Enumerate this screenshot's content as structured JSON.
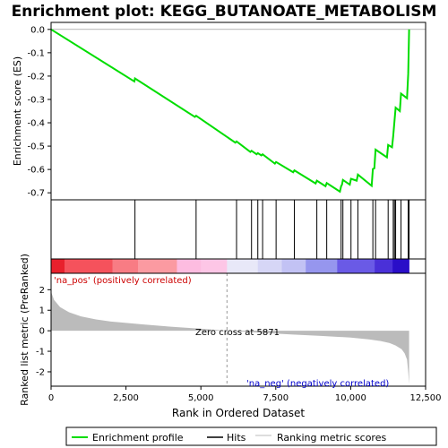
{
  "chart_data": {
    "type": "line",
    "title": "Enrichment plot: KEGG_BUTANOATE_METABOLISM",
    "es_panel": {
      "ylabel": "Enrichment score (ES)",
      "ylim": [
        -0.73,
        0.03
      ],
      "yticks": [
        0.0,
        -0.1,
        -0.2,
        -0.3,
        -0.4,
        -0.5,
        -0.6,
        -0.7
      ],
      "ytick_labels": [
        "0.0",
        "-0.1",
        "-0.2",
        "-0.3",
        "-0.4",
        "-0.5",
        "-0.6",
        "-0.7"
      ],
      "series": [
        {
          "name": "Enrichment profile",
          "color": "#00dd00",
          "x": [
            0,
            2780,
            2800,
            4800,
            4840,
            6150,
            6190,
            6650,
            6690,
            6860,
            6900,
            7020,
            7060,
            7470,
            7510,
            8080,
            8120,
            8830,
            8870,
            9160,
            9200,
            9640,
            9680,
            9710,
            9740,
            9970,
            10010,
            10200,
            10240,
            10700,
            10740,
            10790,
            10830,
            11210,
            11250,
            11380,
            11420,
            11460,
            11500,
            11640,
            11680,
            11880,
            11920,
            11950
          ],
          "y": [
            0.0,
            -0.223,
            -0.21,
            -0.375,
            -0.37,
            -0.485,
            -0.48,
            -0.525,
            -0.52,
            -0.535,
            -0.53,
            -0.54,
            -0.535,
            -0.575,
            -0.568,
            -0.612,
            -0.604,
            -0.66,
            -0.648,
            -0.672,
            -0.658,
            -0.695,
            -0.672,
            -0.665,
            -0.645,
            -0.665,
            -0.64,
            -0.648,
            -0.622,
            -0.67,
            -0.598,
            -0.595,
            -0.515,
            -0.548,
            -0.495,
            -0.505,
            -0.455,
            -0.395,
            -0.335,
            -0.35,
            -0.275,
            -0.295,
            -0.19,
            0.0
          ]
        }
      ]
    },
    "hits": {
      "label": "Hits",
      "positions": [
        2800,
        4840,
        6190,
        6690,
        6900,
        7060,
        7510,
        8120,
        8870,
        9200,
        9680,
        9740,
        10010,
        10240,
        10740,
        10830,
        11250,
        11420,
        11460,
        11500,
        11680,
        11920,
        11950
      ]
    },
    "rank_metric": {
      "ylabel": "Ranked list metric (PreRanked)",
      "legend_label": "Ranking metric scores",
      "ylim": [
        -2.7,
        2.8
      ],
      "yticks": [
        2,
        1,
        0,
        -1,
        -2
      ],
      "ytick_labels": [
        "2",
        "1",
        "0",
        "-1",
        "-2"
      ],
      "x": [
        0,
        100,
        300,
        600,
        1000,
        1500,
        2000,
        3000,
        4000,
        5000,
        5871,
        7000,
        8000,
        9000,
        10000,
        10600,
        11000,
        11300,
        11500,
        11700,
        11800,
        11880,
        11920,
        11950
      ],
      "y": [
        1.9,
        1.5,
        1.15,
        0.9,
        0.7,
        0.55,
        0.45,
        0.32,
        0.2,
        0.1,
        0.0,
        -0.1,
        -0.18,
        -0.25,
        -0.33,
        -0.42,
        -0.5,
        -0.6,
        -0.72,
        -0.9,
        -1.1,
        -1.4,
        -2.0,
        -2.6
      ],
      "zero_cross_label": "Zero cross at 5871",
      "zero_cross_x": 5871,
      "pos_label": "'na_pos' (positively correlated)",
      "neg_label": "'na_neg' (negatively correlated)"
    },
    "x_axis": {
      "xlabel": "Rank in Ordered Dataset",
      "xlim": [
        0,
        12500
      ],
      "xticks": [
        0,
        2500,
        5000,
        7500,
        10000,
        12500
      ],
      "xtick_labels": [
        "0",
        "2,500",
        "5,000",
        "7,500",
        "10,000",
        "12,500"
      ],
      "n_genes": 11950
    },
    "heat_bar": {
      "segments": [
        {
          "end": 450,
          "color": "#e8202c"
        },
        {
          "end": 2050,
          "color": "#f5525c"
        },
        {
          "end": 2900,
          "color": "#f87c84"
        },
        {
          "end": 4200,
          "color": "#fb9aa1"
        },
        {
          "end": 5000,
          "color": "#fdbce0"
        },
        {
          "end": 5871,
          "color": "#fdc6e6"
        },
        {
          "end": 6900,
          "color": "#e8e8f8"
        },
        {
          "end": 7700,
          "color": "#d6d6f6"
        },
        {
          "end": 8500,
          "color": "#c2c2f4"
        },
        {
          "end": 9550,
          "color": "#9696ee"
        },
        {
          "end": 10800,
          "color": "#6a5ae6"
        },
        {
          "end": 11400,
          "color": "#4a30d8"
        },
        {
          "end": 11950,
          "color": "#2a0ec8"
        }
      ]
    },
    "legend": {
      "items": [
        {
          "label": "Enrichment profile",
          "color": "#00dd00"
        },
        {
          "label": "Hits",
          "color": "#000000"
        },
        {
          "label": "Ranking metric scores",
          "color": "#bbbbbb"
        }
      ]
    }
  }
}
